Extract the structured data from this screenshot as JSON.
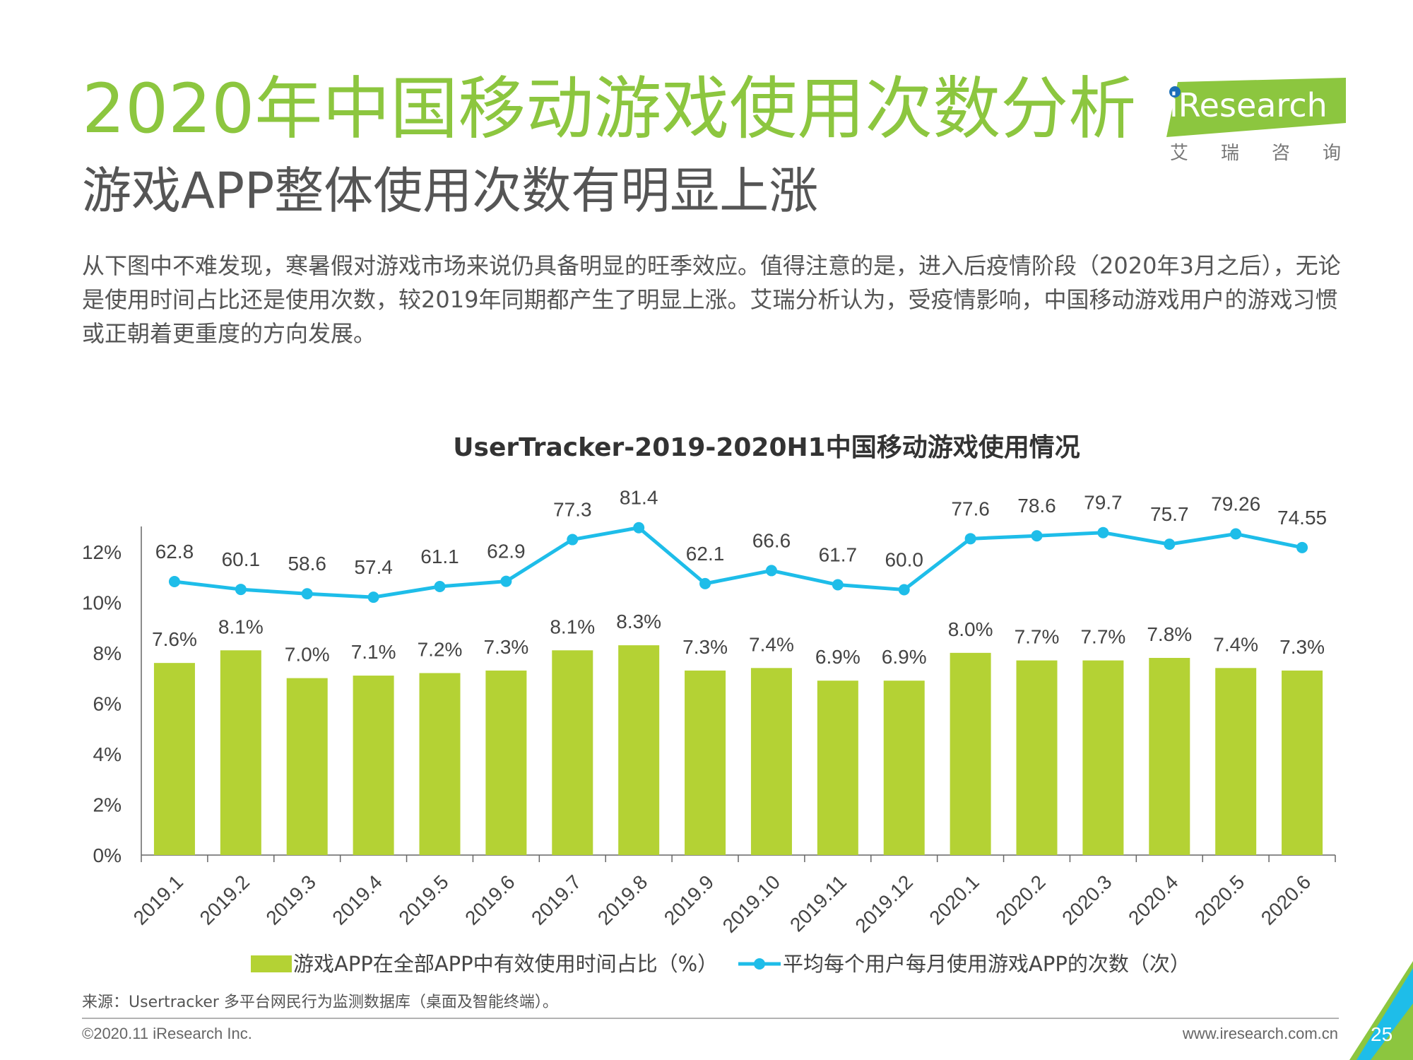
{
  "header": {
    "title": "2020年中国移动游戏使用次数分析",
    "subtitle": "游戏APP整体使用次数有明显上涨",
    "description": "从下图中不难发现，寒暑假对游戏市场来说仍具备明显的旺季效应。值得注意的是，进入后疫情阶段（2020年3月之后），无论是使用时间占比还是使用次数，较2019年同期都产生了明显上涨。艾瑞分析认为，受疫情影响，中国移动游戏用户的游戏习惯或正朝着更重度的方向发展。"
  },
  "logo": {
    "name": "iResearch",
    "chinese": "艾瑞咨询"
  },
  "colors": {
    "title_green": "#8cc63f",
    "bar_green": "#b4d234",
    "line_blue": "#1ebde9"
  },
  "chart_data": {
    "type": "bar",
    "title": "UserTracker-2019-2020H1中国移动游戏使用情况",
    "categories": [
      "2019.1",
      "2019.2",
      "2019.3",
      "2019.4",
      "2019.5",
      "2019.6",
      "2019.7",
      "2019.8",
      "2019.9",
      "2019.10",
      "2019.11",
      "2019.12",
      "2020.1",
      "2020.2",
      "2020.3",
      "2020.4",
      "2020.5",
      "2020.6"
    ],
    "y_ticks": [
      "0%",
      "2%",
      "4%",
      "6%",
      "8%",
      "10%",
      "12%"
    ],
    "ylim": [
      0,
      13
    ],
    "legend_position": "bottom",
    "series": [
      {
        "name": "游戏APP在全部APP中有效使用时间占比（%）",
        "type": "bar",
        "values": [
          7.6,
          8.1,
          7.0,
          7.1,
          7.2,
          7.3,
          8.1,
          8.3,
          7.3,
          7.4,
          6.9,
          6.9,
          8.0,
          7.7,
          7.7,
          7.8,
          7.4,
          7.3
        ],
        "labels": [
          "7.6%",
          "8.1%",
          "7.0%",
          "7.1%",
          "7.2%",
          "7.3%",
          "8.1%",
          "8.3%",
          "7.3%",
          "7.4%",
          "6.9%",
          "6.9%",
          "8.0%",
          "7.7%",
          "7.7%",
          "7.8%",
          "7.4%",
          "7.3%"
        ]
      },
      {
        "name": "平均每个用户每月使用游戏APP的次数（次）",
        "type": "line",
        "values": [
          62.8,
          60.1,
          58.6,
          57.4,
          61.1,
          62.9,
          77.3,
          81.4,
          62.1,
          66.6,
          61.7,
          60.0,
          77.6,
          78.6,
          79.7,
          75.7,
          79.26,
          74.55
        ],
        "labels": [
          "62.8",
          "60.1",
          "58.6",
          "57.4",
          "61.1",
          "62.9",
          "77.3",
          "81.4",
          "62.1",
          "66.6",
          "61.7",
          "60.0",
          "77.6",
          "78.6",
          "79.7",
          "75.7",
          "79.26",
          "74.55"
        ]
      }
    ]
  },
  "footer": {
    "source": "来源：Usertracker 多平台网民行为监测数据库（桌面及智能终端）。",
    "copyright": "©2020.11 iResearch Inc.",
    "website": "www.iresearch.com.cn",
    "page": "25"
  }
}
